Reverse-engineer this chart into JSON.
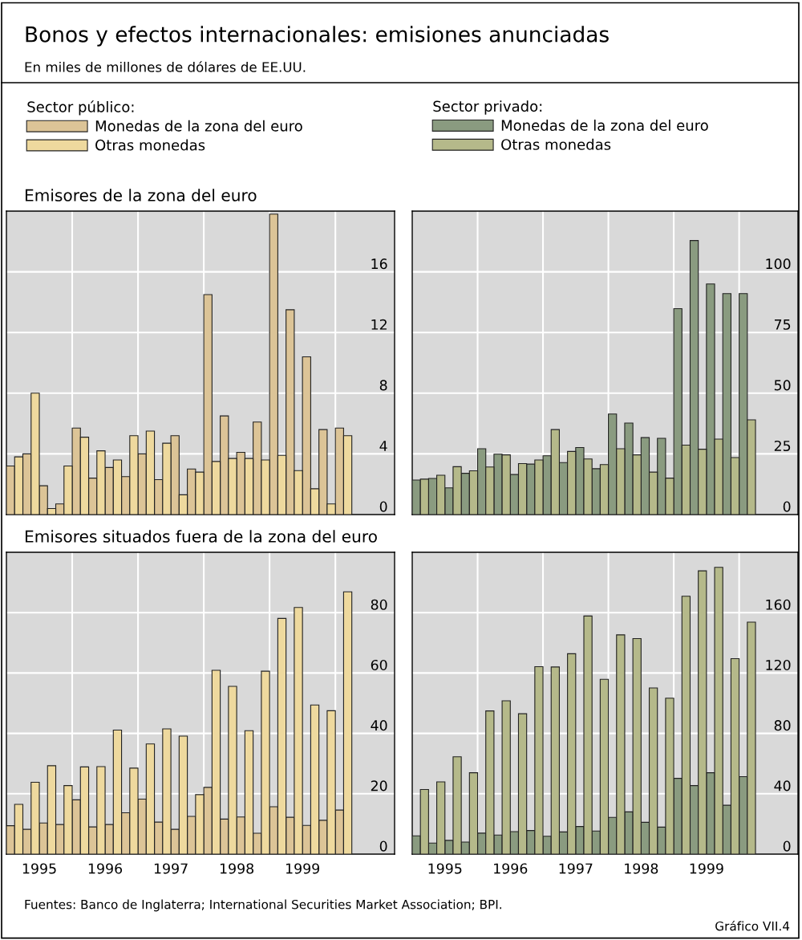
{
  "chart_data": [
    {
      "type": "bar",
      "title": "Bonos y efectos internacionales: emisiones anunciadas",
      "subtitle": "En miles de millones de dólares de EE.UU.",
      "legend_title": "Sector público:",
      "legend": "top",
      "annotations": [
        "Emisores de la zona del euro"
      ],
      "x": [
        1995.125,
        1995.375,
        1995.625,
        1995.875,
        1996.125,
        1996.375,
        1996.625,
        1996.875,
        1997.125,
        1997.375,
        1997.625,
        1997.875,
        1998.125,
        1998.375,
        1998.625,
        1998.875,
        1999.125,
        1999.375,
        1999.625,
        1999.875,
        2000.125
      ],
      "series": [
        {
          "name": "Monedas de la zona del euro",
          "color": "#dcc497",
          "values": [
            3.2,
            4.0,
            1.9,
            0.7,
            5.7,
            2.4,
            3.1,
            2.5,
            4.0,
            2.3,
            5.2,
            3.0,
            14.5,
            6.5,
            4.1,
            6.1,
            19.8,
            13.5,
            10.4,
            5.6,
            5.7
          ]
        },
        {
          "name": "Otras monedas",
          "color": "#eed99e",
          "values": [
            3.8,
            8.0,
            0.4,
            3.2,
            5.1,
            4.2,
            3.6,
            5.2,
            5.5,
            4.7,
            1.3,
            2.8,
            3.5,
            3.7,
            3.7,
            3.6,
            3.9,
            2.9,
            1.7,
            0.7,
            5.2
          ]
        }
      ],
      "xlim": [
        1995,
        2000.9
      ],
      "xticks": [
        {
          "value": 1996,
          "label": null
        },
        {
          "value": 1997,
          "label": null
        },
        {
          "value": 1998,
          "label": null
        },
        {
          "value": 1999,
          "label": null
        },
        {
          "value": 2000,
          "label": null
        }
      ],
      "ylim": [
        0,
        20
      ],
      "yticks": [
        0,
        4,
        8,
        12,
        16
      ],
      "grid": true,
      "tick_labels": "y"
    },
    {
      "type": "bar",
      "legend_title": "Sector privado:",
      "legend": "top",
      "x": [
        1995.125,
        1995.375,
        1995.625,
        1995.875,
        1996.125,
        1996.375,
        1996.625,
        1996.875,
        1997.125,
        1997.375,
        1997.625,
        1997.875,
        1998.125,
        1998.375,
        1998.625,
        1998.875,
        1999.125,
        1999.375,
        1999.625,
        1999.875,
        2000.125
      ],
      "series": [
        {
          "name": "Monedas de la zona del euro",
          "color": "#8a9b80",
          "values": [
            14.2,
            14.9,
            11.0,
            17.0,
            27.1,
            24.9,
            16.5,
            20.8,
            24.2,
            21.4,
            27.6,
            18.9,
            41.4,
            37.7,
            31.7,
            31.4,
            84.8,
            112.9,
            95.0,
            91.0,
            91.0
          ]
        },
        {
          "name": "Otras monedas",
          "color": "#b5b98a",
          "values": [
            14.6,
            16.2,
            19.7,
            18.0,
            19.6,
            24.6,
            21.0,
            22.5,
            35.0,
            26.0,
            22.9,
            20.6,
            27.1,
            24.6,
            17.5,
            15.0,
            28.6,
            26.9,
            31.1,
            23.5,
            39.0
          ]
        }
      ],
      "xlim": [
        1995,
        2000.9
      ],
      "xticks": [
        {
          "value": 1996,
          "label": null
        },
        {
          "value": 1997,
          "label": null
        },
        {
          "value": 1998,
          "label": null
        },
        {
          "value": 1999,
          "label": null
        },
        {
          "value": 2000,
          "label": null
        }
      ],
      "ylim": [
        0,
        125
      ],
      "yticks": [
        0,
        25,
        50,
        75,
        100
      ],
      "grid": true,
      "tick_labels": "y"
    },
    {
      "type": "bar",
      "annotations": [
        "Emisores situados fuera de la zona del euro"
      ],
      "x": [
        1995.125,
        1995.375,
        1995.625,
        1995.875,
        1996.125,
        1996.375,
        1996.625,
        1996.875,
        1997.125,
        1997.375,
        1997.625,
        1997.875,
        1998.125,
        1998.375,
        1998.625,
        1998.875,
        1999.125,
        1999.375,
        1999.625,
        1999.875,
        2000.125
      ],
      "series": [
        {
          "color": "#dcc497",
          "values": [
            9.4,
            8.2,
            10.3,
            9.8,
            18.0,
            9.0,
            9.8,
            13.7,
            18.2,
            10.6,
            8.2,
            12.5,
            22.1,
            11.6,
            12.3,
            6.9,
            15.7,
            12.2,
            9.5,
            11.2,
            14.6
          ]
        },
        {
          "color": "#eed99e",
          "values": [
            16.5,
            23.8,
            29.3,
            22.7,
            28.9,
            29.0,
            41.1,
            28.5,
            36.5,
            41.5,
            39.1,
            19.7,
            60.9,
            55.6,
            40.9,
            60.6,
            78.1,
            81.7,
            49.4,
            47.5,
            86.9
          ]
        }
      ],
      "xlim": [
        1995,
        2000.9
      ],
      "xticks": [
        {
          "value": 1995.5,
          "label": "1995"
        },
        {
          "value": 1996,
          "label": null
        },
        {
          "value": 1996.5,
          "label": "1996"
        },
        {
          "value": 1997,
          "label": null
        },
        {
          "value": 1997.5,
          "label": "1997"
        },
        {
          "value": 1998,
          "label": null
        },
        {
          "value": 1998.5,
          "label": "1998"
        },
        {
          "value": 1999,
          "label": null
        },
        {
          "value": 1999.5,
          "label": "1999"
        },
        {
          "value": 2000,
          "label": null
        }
      ],
      "ylim": [
        0,
        100
      ],
      "yticks": [
        0,
        20,
        40,
        60,
        80
      ],
      "grid": true
    },
    {
      "type": "bar",
      "annotations": [
        "Fuentes: Banco de Inglaterra; International Securities Market Association; BPI.",
        "Gráfico VII.4"
      ],
      "x": [
        1995.125,
        1995.375,
        1995.625,
        1995.875,
        1996.125,
        1996.375,
        1996.625,
        1996.875,
        1997.125,
        1997.375,
        1997.625,
        1997.875,
        1998.125,
        1998.375,
        1998.625,
        1998.875,
        1999.125,
        1999.375,
        1999.625,
        1999.875,
        2000.125
      ],
      "series": [
        {
          "color": "#8a9b80",
          "values": [
            12.1,
            7.3,
            9.1,
            8.0,
            13.9,
            12.6,
            14.9,
            15.6,
            11.8,
            14.7,
            18.3,
            15.3,
            24.3,
            28.0,
            21.1,
            17.9,
            50.2,
            45.4,
            53.9,
            32.4,
            51.3
          ]
        },
        {
          "color": "#b5b98a",
          "values": [
            42.8,
            47.9,
            64.5,
            53.9,
            94.9,
            101.6,
            93.0,
            124.2,
            124.0,
            132.8,
            157.8,
            115.8,
            145.3,
            142.8,
            110.1,
            103.3,
            170.9,
            187.7,
            190.0,
            129.5,
            153.7
          ]
        }
      ],
      "xlim": [
        1995,
        2000.9
      ],
      "xticks": [
        {
          "value": 1995.5,
          "label": "1995"
        },
        {
          "value": 1996,
          "label": null
        },
        {
          "value": 1996.5,
          "label": "1996"
        },
        {
          "value": 1997,
          "label": null
        },
        {
          "value": 1997.5,
          "label": "1997"
        },
        {
          "value": 1998,
          "label": null
        },
        {
          "value": 1998.5,
          "label": "1998"
        },
        {
          "value": 1999,
          "label": null
        },
        {
          "value": 1999.5,
          "label": "1999"
        },
        {
          "value": 2000,
          "label": null
        }
      ],
      "ylim": [
        0,
        200
      ],
      "yticks": [
        0,
        40,
        80,
        120,
        160
      ],
      "grid": true
    }
  ]
}
